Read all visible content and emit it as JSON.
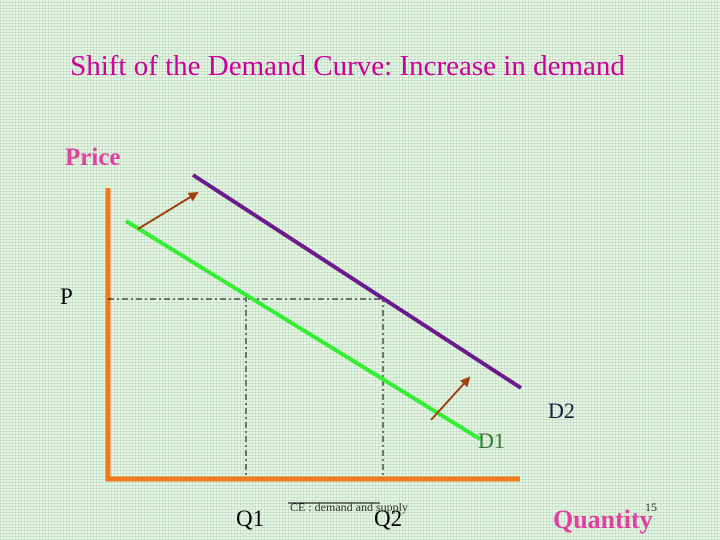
{
  "title": "Shift of the Demand Curve: Increase in demand",
  "axes": {
    "y_label": "Price",
    "x_label": "Quantity",
    "price_marker": "P",
    "q1": "Q1",
    "q2": "Q2"
  },
  "curves": {
    "d1_label": "D1",
    "d2_label": "D2"
  },
  "footer": {
    "text": "CE : demand and supply",
    "slide_number": "15"
  },
  "colors": {
    "axis": "#f07a1a",
    "d1": "#33ee33",
    "d2": "#6a1a8a",
    "arrow": "#a0400c",
    "title": "#cc0099",
    "axis_label": "#e040a0"
  }
}
